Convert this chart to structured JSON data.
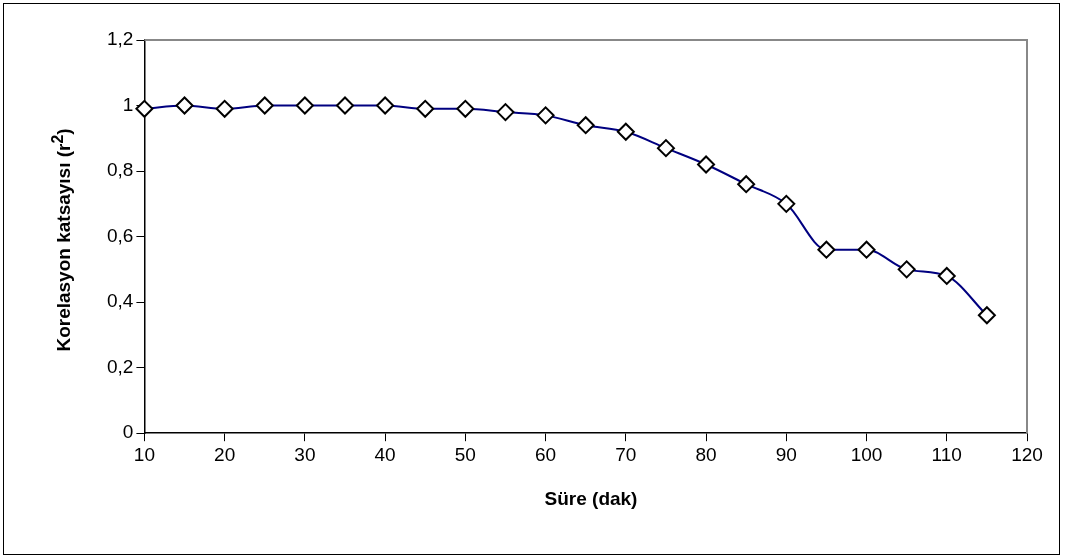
{
  "chart_data": {
    "type": "line",
    "xlabel": "Süre (dak)",
    "ylabel": "Korelasyon katsayısı (r$^{2}$)",
    "x": [
      10,
      15,
      20,
      25,
      30,
      35,
      40,
      45,
      50,
      55,
      60,
      65,
      70,
      75,
      80,
      85,
      90,
      95,
      100,
      105,
      110,
      115
    ],
    "series": [
      {
        "color": "#000080",
        "values": [
          0.99,
          1.0,
          0.99,
          1.0,
          1.0,
          1.0,
          1.0,
          0.99,
          0.99,
          0.98,
          0.97,
          0.94,
          0.92,
          0.87,
          0.82,
          0.76,
          0.7,
          0.56,
          0.56,
          0.5,
          0.48,
          0.36
        ]
      }
    ],
    "xlim": [
      10,
      120
    ],
    "xticks": [
      10,
      20,
      30,
      40,
      50,
      60,
      70,
      80,
      90,
      100,
      110,
      120
    ],
    "ylim": [
      0,
      1.2
    ],
    "yticks": [
      0,
      {
        "value": 0.2,
        "label": "0,2"
      },
      {
        "value": 0.4,
        "label": "0,4"
      },
      {
        "value": 0.6,
        "label": "0,6"
      },
      {
        "value": 0.8,
        "label": "0,8"
      },
      1,
      {
        "value": 1.2,
        "label": "1,2"
      }
    ],
    "grid": false,
    "legend": false,
    "marker": "diamond",
    "line_style": "solid"
  }
}
